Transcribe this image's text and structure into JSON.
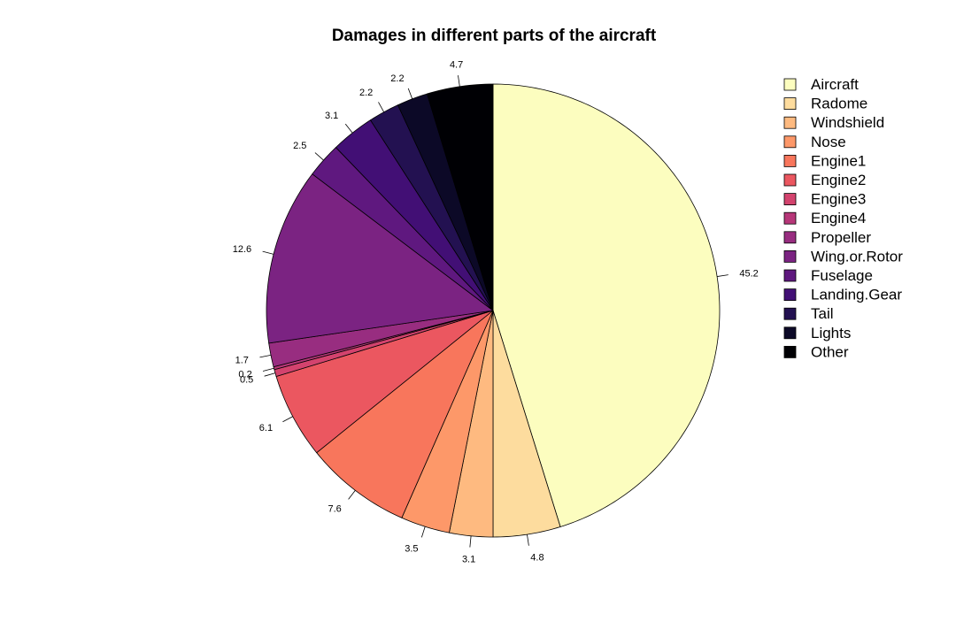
{
  "chart_data": {
    "type": "pie",
    "title": "Damages in different parts of the aircraft",
    "categories": [
      "Aircraft",
      "Radome",
      "Windshield",
      "Nose",
      "Engine1",
      "Engine2",
      "Engine3",
      "Engine4",
      "Propeller",
      "Wing.or.Rotor",
      "Fuselage",
      "Landing.Gear",
      "Tail",
      "Lights",
      "Other"
    ],
    "values": [
      45.2,
      4.8,
      3.1,
      3.5,
      7.6,
      6.1,
      0.5,
      0.2,
      1.7,
      12.6,
      2.5,
      3.1,
      2.2,
      2.2,
      4.7
    ],
    "value_labels": [
      "45.2",
      "4.8",
      "3.1",
      "3.5",
      "7.6",
      "6.1",
      "0.5",
      "0.2",
      "1.7",
      "12.6",
      "2.5",
      "3.1",
      "2.2",
      "2.2",
      "4.7"
    ],
    "colors": [
      "#FCFDBF",
      "#FDDC9E",
      "#FEBA80",
      "#FD9869",
      "#F8765C",
      "#EB5760",
      "#D3436E",
      "#B73779",
      "#982D80",
      "#7B2382",
      "#5F187F",
      "#420F75",
      "#231151",
      "#0C0927",
      "#000004"
    ],
    "start_angle_deg": 90,
    "direction": "clockwise",
    "legend_position": "right"
  }
}
